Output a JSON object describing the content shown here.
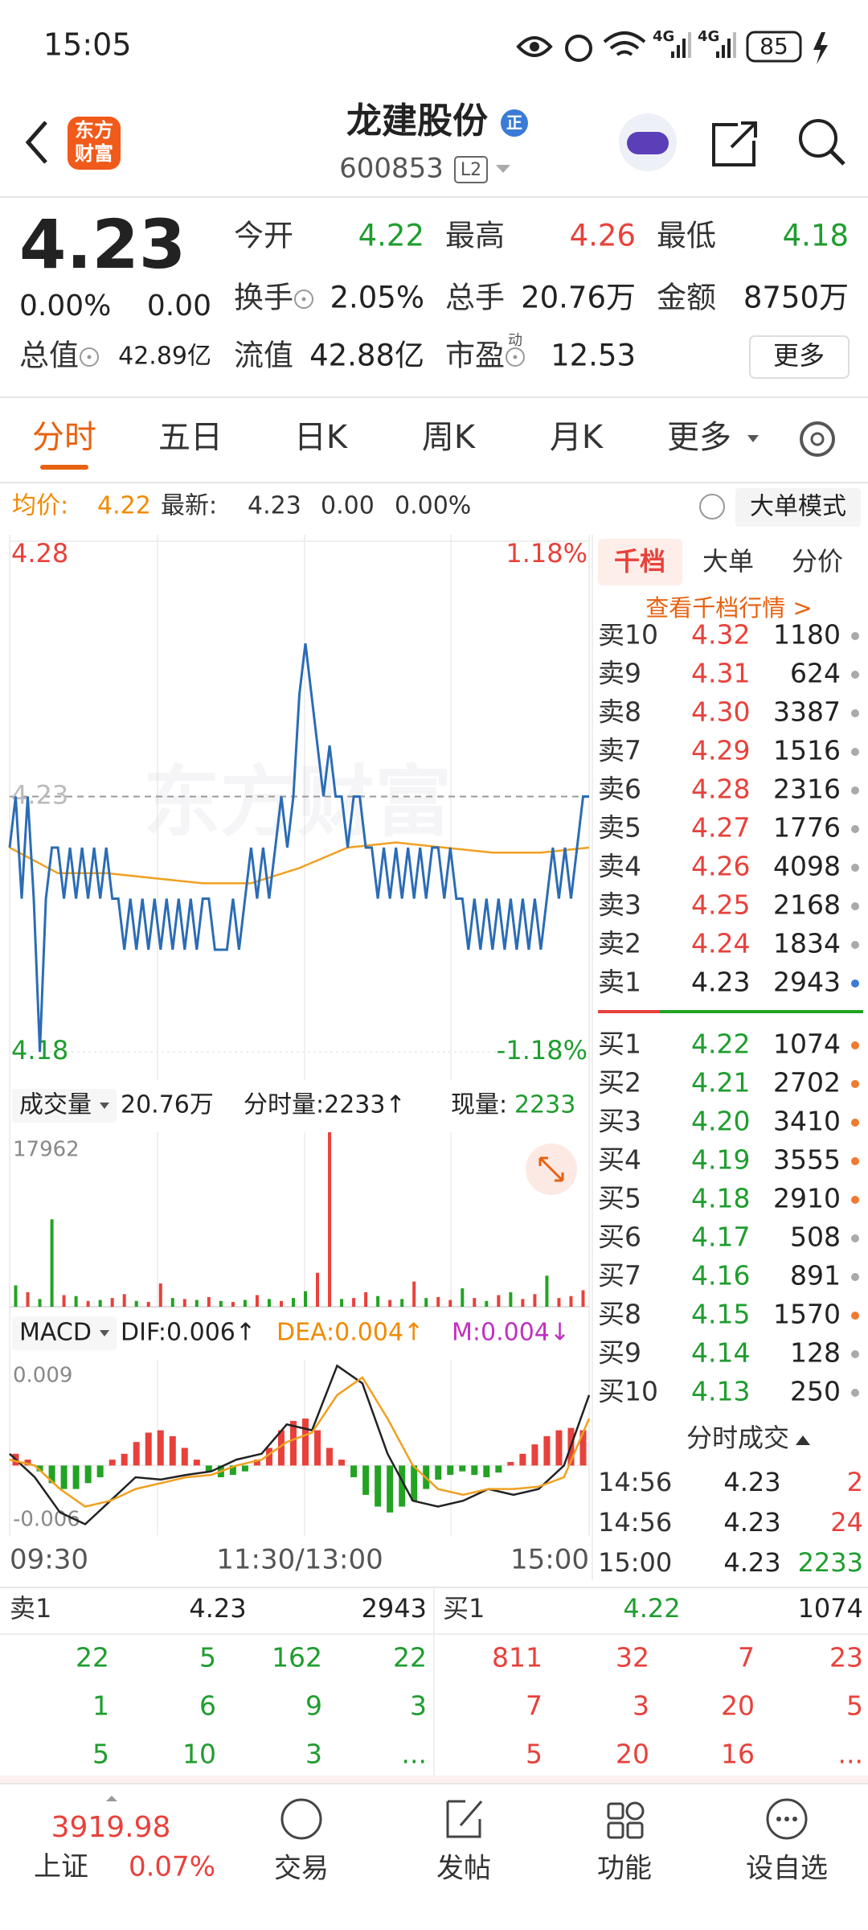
{
  "status": {
    "time": "15:05",
    "network": [
      "4G",
      "4G"
    ],
    "battery": "85"
  },
  "header": {
    "logo": [
      "东方",
      "财富"
    ],
    "title": "龙建股份",
    "badge": "正",
    "code": "600853",
    "level": "L2"
  },
  "quote": {
    "price": "4.23",
    "change_pct": "0.00%",
    "change": "0.00",
    "more": "更多",
    "pe_tag": "动",
    "fields": [
      {
        "label": "今开",
        "value": "4.22",
        "color": "#1f9d2f"
      },
      {
        "label": "最高",
        "value": "4.26",
        "color": "#e8413b"
      },
      {
        "label": "最低",
        "value": "4.18",
        "color": "#1f9d2f"
      },
      {
        "label": "换手",
        "value": "2.05%",
        "color": "#222222"
      },
      {
        "label": "总手",
        "value": "20.76万",
        "color": "#222222"
      },
      {
        "label": "金额",
        "value": "8750万",
        "color": "#222222"
      },
      {
        "label": "总值",
        "value": "42.89亿",
        "color": "#222222"
      },
      {
        "label": "流值",
        "value": "42.88亿",
        "color": "#222222"
      },
      {
        "label": "市盈",
        "value": "12.53",
        "color": "#222222"
      }
    ]
  },
  "tabs": [
    "分时",
    "五日",
    "日K",
    "周K",
    "月K",
    "更多"
  ],
  "info": {
    "avg_label": "均价:",
    "avg": "4.22",
    "last_label": "最新:",
    "last": "4.23",
    "change": "0.00",
    "change_pct": "0.00%",
    "mode": "大单模式"
  },
  "watermark": "东方财富",
  "time_axis": [
    "09:30",
    "11:30/13:00",
    "15:00"
  ],
  "volume_header": {
    "name": "成交量",
    "total": "20.76万",
    "minute": "分时量:2233↑",
    "now_label": "现量:",
    "now": "2233"
  },
  "macd_header": {
    "name": "MACD",
    "dif": "DIF:0.006↑",
    "dea": "DEA:0.004↑",
    "m": "M:0.004↓"
  },
  "chart_data": [
    {
      "type": "line",
      "ylim": [
        4.18,
        4.28
      ],
      "yticks": [
        4.18,
        4.23,
        4.28
      ],
      "y2lim": [
        -1.18,
        1.18
      ],
      "y2ticks": [
        {
          "value": -1.18,
          "label": "-1.18%"
        },
        {
          "value": 1.18,
          "label": "1.18%"
        }
      ],
      "series": [
        {
          "color": "#2b6cb5",
          "values": [
            4.22,
            4.23,
            4.21,
            4.23,
            4.21,
            4.18,
            4.21,
            4.22,
            4.22,
            4.21,
            4.22,
            4.21,
            4.22,
            4.21,
            4.22,
            4.21,
            4.22,
            4.21,
            4.21,
            4.2,
            4.21,
            4.2,
            4.21,
            4.2,
            4.21,
            4.2,
            4.21,
            4.2,
            4.21,
            4.2,
            4.21,
            4.2,
            4.21,
            4.21,
            4.2,
            4.2,
            4.2,
            4.21,
            4.2,
            4.21,
            4.22,
            4.21,
            4.22,
            4.21,
            4.22,
            4.23,
            4.22,
            4.23,
            4.25,
            4.26,
            4.25,
            4.24,
            4.23,
            4.24,
            4.23,
            4.23,
            4.22,
            4.23,
            4.23,
            4.22,
            4.22,
            4.21,
            4.22,
            4.21,
            4.22,
            4.21,
            4.22,
            4.21,
            4.22,
            4.21,
            4.22,
            4.22,
            4.21,
            4.22,
            4.21,
            4.21,
            4.2,
            4.21,
            4.2,
            4.21,
            4.2,
            4.21,
            4.2,
            4.21,
            4.2,
            4.21,
            4.2,
            4.21,
            4.2,
            4.21,
            4.22,
            4.21,
            4.22,
            4.21,
            4.22,
            4.23,
            4.23
          ]
        },
        {
          "color": "#f0a020",
          "values": [
            4.22,
            4.215,
            4.215,
            4.214,
            4.213,
            4.213,
            4.216,
            4.22,
            4.221,
            4.22,
            4.219,
            4.219,
            4.22
          ]
        }
      ]
    },
    {
      "type": "bar",
      "ylim": [
        0,
        17962
      ],
      "yticks": [
        17962
      ],
      "values": [
        2200,
        1500,
        800,
        9000,
        1200,
        1100,
        600,
        700,
        900,
        1300,
        600,
        500,
        2400,
        900,
        800,
        700,
        1000,
        600,
        500,
        700,
        1200,
        800,
        600,
        900,
        1600,
        3500,
        17962,
        800,
        900,
        1500,
        1100,
        700,
        800,
        2600,
        900,
        1000,
        700,
        1900,
        900,
        600,
        1200,
        1500,
        800,
        1300,
        3200,
        900,
        1100,
        1700
      ],
      "colors": [
        "#23a323",
        "#e8413b",
        "#23a323",
        "#23a323",
        "#e8413b",
        "#23a323",
        "#e8413b",
        "#23a323",
        "#e8413b",
        "#e8413b",
        "#23a323",
        "#e8413b",
        "#e8413b",
        "#23a323",
        "#e8413b",
        "#23a323",
        "#e8413b",
        "#23a323",
        "#e8413b",
        "#23a323",
        "#e8413b",
        "#23a323",
        "#e8413b",
        "#23a323",
        "#23a323",
        "#e8413b",
        "#e8413b",
        "#23a323",
        "#e8413b",
        "#e8413b",
        "#23a323",
        "#e8413b",
        "#23a323",
        "#e8413b",
        "#23a323",
        "#e8413b",
        "#e8413b",
        "#23a323",
        "#e8413b",
        "#23a323",
        "#e8413b",
        "#23a323",
        "#e8413b",
        "#e8413b",
        "#23a323",
        "#e8413b",
        "#e8413b",
        "#e8413b"
      ]
    },
    {
      "type": "macd",
      "ylim": [
        -0.006,
        0.009
      ],
      "yticks": [
        -0.006,
        0.009
      ],
      "up_color": "#e8413b",
      "down_color": "#23a323",
      "values": [
        0.001,
        0.0005,
        -0.0005,
        -0.0015,
        -0.002,
        -0.002,
        -0.0015,
        -0.001,
        0.0005,
        0.001,
        0.002,
        0.0028,
        0.003,
        0.0025,
        0.0015,
        0.0005,
        -0.0005,
        -0.001,
        -0.0008,
        -0.0005,
        0.0005,
        0.0015,
        0.003,
        0.0038,
        0.004,
        0.003,
        0.0015,
        0.0005,
        -0.001,
        -0.0025,
        -0.0035,
        -0.004,
        -0.0035,
        -0.003,
        -0.002,
        -0.0012,
        -0.0008,
        -0.0005,
        -0.0008,
        -0.001,
        -0.0006,
        0.0003,
        0.001,
        0.0018,
        0.0025,
        0.003,
        0.0032,
        0.003
      ],
      "series": [
        {
          "color": "#222222",
          "values": [
            0.001,
            -0.001,
            -0.004,
            -0.005,
            -0.003,
            -0.001,
            -0.0012,
            -0.0008,
            -0.0005,
            0.0005,
            0.001,
            0.0035,
            0.003,
            0.0085,
            0.007,
            0.001,
            -0.003,
            -0.0035,
            -0.003,
            -0.002,
            -0.0025,
            -0.002,
            0,
            0.006
          ]
        },
        {
          "color": "#f0a020",
          "values": [
            0.0005,
            0,
            -0.002,
            -0.0035,
            -0.003,
            -0.002,
            -0.0015,
            -0.001,
            -0.0008,
            0,
            0.0005,
            0.002,
            0.0028,
            0.006,
            0.0075,
            0.004,
            0,
            -0.002,
            -0.0025,
            -0.002,
            -0.002,
            -0.0018,
            -0.001,
            0.004
          ]
        }
      ]
    }
  ],
  "order_book": {
    "tabs": [
      "千档",
      "大单",
      "分价"
    ],
    "link": "查看千档行情 >",
    "asks": [
      {
        "name": "卖10",
        "price": "4.32",
        "volume": "1180",
        "dot": "#aaaaaa"
      },
      {
        "name": "卖9",
        "price": "4.31",
        "volume": "624",
        "dot": "#aaaaaa"
      },
      {
        "name": "卖8",
        "price": "4.30",
        "volume": "3387",
        "dot": "#aaaaaa"
      },
      {
        "name": "卖7",
        "price": "4.29",
        "volume": "1516",
        "dot": "#aaaaaa"
      },
      {
        "name": "卖6",
        "price": "4.28",
        "volume": "2316",
        "dot": "#aaaaaa"
      },
      {
        "name": "卖5",
        "price": "4.27",
        "volume": "1776",
        "dot": "#aaaaaa"
      },
      {
        "name": "卖4",
        "price": "4.26",
        "volume": "4098",
        "dot": "#aaaaaa"
      },
      {
        "name": "卖3",
        "price": "4.25",
        "volume": "2168",
        "dot": "#aaaaaa"
      },
      {
        "name": "卖2",
        "price": "4.24",
        "volume": "1834",
        "dot": "#aaaaaa"
      },
      {
        "name": "卖1",
        "price": "4.23",
        "volume": "2943",
        "dot": "#3a7bd5"
      }
    ],
    "bids": [
      {
        "name": "买1",
        "price": "4.22",
        "volume": "1074",
        "dot": "#f07a30"
      },
      {
        "name": "买2",
        "price": "4.21",
        "volume": "2702",
        "dot": "#f07a30"
      },
      {
        "name": "买3",
        "price": "4.20",
        "volume": "3410",
        "dot": "#f07a30"
      },
      {
        "name": "买4",
        "price": "4.19",
        "volume": "3555",
        "dot": "#f07a30"
      },
      {
        "name": "买5",
        "price": "4.18",
        "volume": "2910",
        "dot": "#f07a30"
      },
      {
        "name": "买6",
        "price": "4.17",
        "volume": "508",
        "dot": "#aaaaaa"
      },
      {
        "name": "买7",
        "price": "4.16",
        "volume": "891",
        "dot": "#aaaaaa"
      },
      {
        "name": "买8",
        "price": "4.15",
        "volume": "1570",
        "dot": "#f07a30"
      },
      {
        "name": "买9",
        "price": "4.14",
        "volume": "128",
        "dot": "#aaaaaa"
      },
      {
        "name": "买10",
        "price": "4.13",
        "volume": "250",
        "dot": "#aaaaaa"
      }
    ]
  },
  "trades": {
    "title": "分时成交",
    "rows": [
      {
        "time": "14:56",
        "price": "4.23",
        "volume": "2",
        "color": "#e8413b"
      },
      {
        "time": "14:56",
        "price": "4.23",
        "volume": "24",
        "color": "#e8413b"
      },
      {
        "time": "15:00",
        "price": "4.23",
        "volume": "2233",
        "color": "#1f9d2f"
      }
    ]
  },
  "depth": {
    "ask": {
      "name": "卖1",
      "price": "4.23",
      "volume": "2943"
    },
    "bid": {
      "name": "买1",
      "price": "4.22",
      "volume": "1074"
    },
    "ask_grid": [
      [
        "22",
        "5",
        "162",
        "22"
      ],
      [
        "1",
        "6",
        "9",
        "3"
      ],
      [
        "5",
        "10",
        "3",
        "..."
      ]
    ],
    "bid_grid": [
      [
        "811",
        "32",
        "7",
        "23"
      ],
      [
        "7",
        "3",
        "20",
        "5"
      ],
      [
        "5",
        "20",
        "16",
        "..."
      ]
    ]
  },
  "nav": {
    "index_value": "3919.98",
    "index_name": "上证",
    "index_change": "0.07%",
    "items": [
      "交易",
      "发帖",
      "功能",
      "设自选"
    ]
  }
}
